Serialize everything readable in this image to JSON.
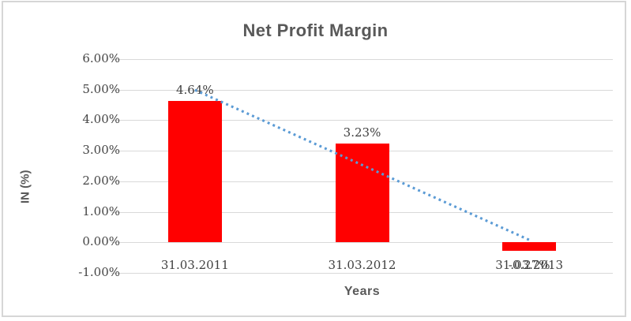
{
  "window": {
    "background": "#FFFFFF",
    "frame_border_color": "#D6D6D6"
  },
  "chart_data": {
    "type": "bar",
    "title": "Net Profit Margin",
    "xlabel": "Years",
    "ylabel": "IN (%)",
    "categories": [
      "31.03.2011",
      "31.03.2012",
      "31.03.2013"
    ],
    "series": [
      {
        "name": "Net Profit Margin",
        "values": [
          4.64,
          3.23,
          -0.27
        ]
      }
    ],
    "data_labels": [
      "4.64%",
      "3.23%",
      "-0.27%"
    ],
    "yticks": [
      {
        "value": 6,
        "label": "6.00%"
      },
      {
        "value": 5,
        "label": "5.00%"
      },
      {
        "value": 4,
        "label": "4.00%"
      },
      {
        "value": 3,
        "label": "3.00%"
      },
      {
        "value": 2,
        "label": "2.00%"
      },
      {
        "value": 1,
        "label": "1.00%"
      },
      {
        "value": 0,
        "label": "0.00%"
      },
      {
        "value": -1,
        "label": "-1.00%"
      }
    ],
    "ylim": [
      -1,
      6
    ],
    "grid": true,
    "legend": false,
    "bar_color": "#FF0000",
    "gridline_color": "#D9D9D9",
    "title_color": "#595959",
    "label_color": "#3F3F3F",
    "trendline": {
      "type": "linear",
      "style": "dotted",
      "color": "#5B9BD5",
      "start_value": 4.99,
      "end_value": 0.08
    }
  }
}
